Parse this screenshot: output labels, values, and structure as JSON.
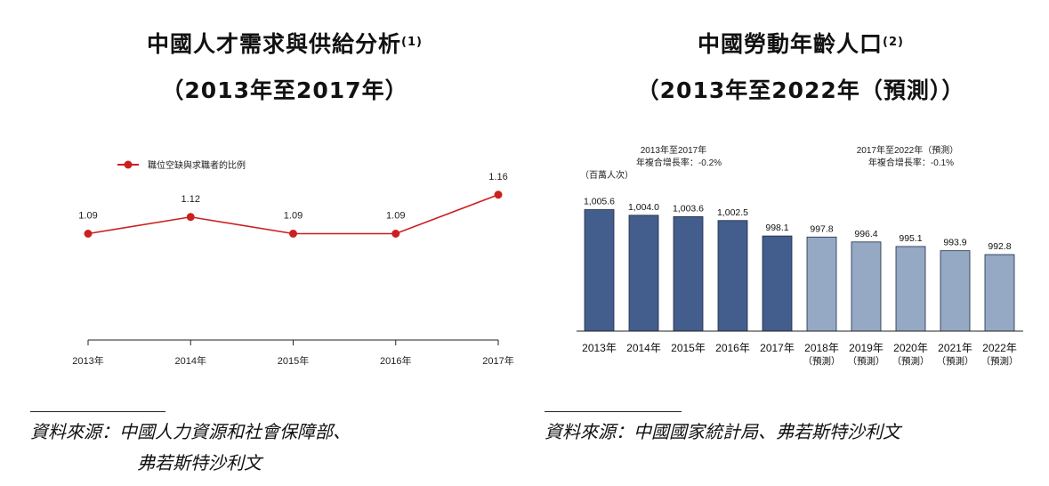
{
  "left_panel": {
    "title_line1": "中國人才需求與供給分析",
    "title_sup": "(1)",
    "title_line2": "（2013年至2017年）",
    "source_line1": "資料來源：中國人力資源和社會保障部、",
    "source_line2": "弗若斯特沙利文"
  },
  "right_panel": {
    "title_line1": "中國勞動年齡人口",
    "title_sup": "(2)",
    "title_line2": "（2013年至2022年（預測））",
    "source_line1": "資料來源：中國國家統計局、弗若斯特沙利文"
  },
  "chart_data": [
    {
      "type": "line",
      "title": "中國人才需求與供給分析",
      "legend": "職位空缺與求職者的比例",
      "legend_position": "top-left",
      "categories": [
        "2013年",
        "2014年",
        "2015年",
        "2016年",
        "2017年"
      ],
      "values": [
        1.09,
        1.12,
        1.09,
        1.09,
        1.16
      ],
      "labels": [
        "1.09",
        "1.12",
        "1.09",
        "1.09",
        "1.16"
      ],
      "ylim": [
        0.95,
        1.19
      ],
      "line_color": "#cc1f1f",
      "grid": false
    },
    {
      "type": "bar",
      "title": "中國勞動年齡人口",
      "unit_label": "（百萬人次）",
      "categories": [
        "2013年",
        "2014年",
        "2015年",
        "2016年",
        "2017年",
        "2018年",
        "2019年",
        "2020年",
        "2021年",
        "2022年"
      ],
      "sublabels": [
        "",
        "",
        "",
        "",
        "",
        "（預測）",
        "（預測）",
        "（預測）",
        "（預測）",
        "（預測）"
      ],
      "values": [
        1005.6,
        1004.0,
        1003.6,
        1002.5,
        998.1,
        997.8,
        996.4,
        995.1,
        993.9,
        992.8
      ],
      "labels": [
        "1,005.6",
        "1,004.0",
        "1,003.6",
        "1,002.5",
        "998.1",
        "997.8",
        "996.4",
        "995.1",
        "993.9",
        "992.8"
      ],
      "forecast_from_index": 5,
      "ylim": [
        971.0,
        1007.0
      ],
      "actual_color": "#435d8c",
      "forecast_color": "#95a9c4",
      "cagr_annotations": [
        {
          "line1": "2013年至2017年",
          "line2": "年複合增長率：-0.2%"
        },
        {
          "line1": "2017年至2022年（預測）",
          "line2": "年複合增長率：-0.1%"
        }
      ],
      "grid": false
    }
  ]
}
